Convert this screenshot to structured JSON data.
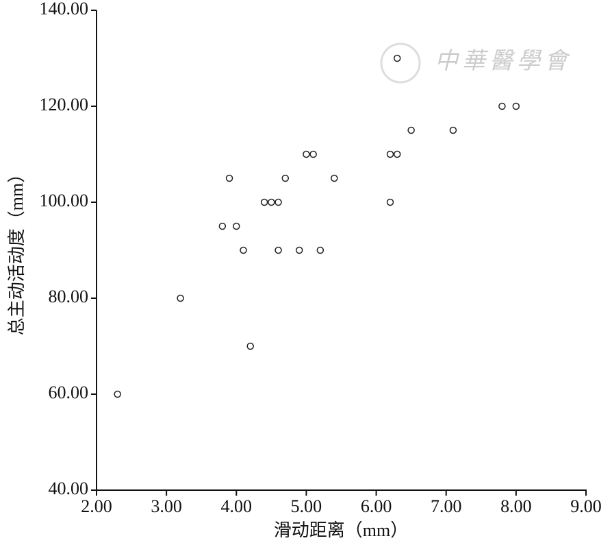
{
  "chart_data": {
    "type": "scatter",
    "x_label": "滑动距离（mm）",
    "y_label": "总主动活动度（mm）",
    "watermark": "中華醫學會",
    "series": [
      {
        "color": "#222222",
        "x": [
          2.3,
          3.2,
          3.8,
          3.9,
          4.0,
          4.1,
          4.2,
          4.4,
          4.5,
          4.6,
          4.6,
          4.7,
          4.9,
          5.0,
          5.1,
          5.2,
          5.4,
          6.2,
          6.2,
          6.3,
          6.3,
          6.5,
          7.1,
          7.8,
          8.0
        ],
        "values": [
          60,
          80,
          95,
          105,
          95,
          90,
          70,
          100,
          100,
          100,
          90,
          105,
          90,
          110,
          110,
          90,
          105,
          100,
          110,
          110,
          130,
          115,
          115,
          120,
          120
        ]
      }
    ],
    "xlim": [
      2,
      9
    ],
    "ylim": [
      40,
      140
    ],
    "xticks": [
      {
        "value": 2,
        "label": "2.00"
      },
      {
        "value": 3,
        "label": "3.00"
      },
      {
        "value": 4,
        "label": "4.00"
      },
      {
        "value": 5,
        "label": "5.00"
      },
      {
        "value": 6,
        "label": "6.00"
      },
      {
        "value": 7,
        "label": "7.00"
      },
      {
        "value": 8,
        "label": "8.00"
      },
      {
        "value": 9,
        "label": "9.00"
      }
    ],
    "yticks": [
      {
        "value": 40,
        "label": "40.00"
      },
      {
        "value": 60,
        "label": "60.00"
      },
      {
        "value": 80,
        "label": "80.00"
      },
      {
        "value": 100,
        "label": "100.00"
      },
      {
        "value": 120,
        "label": "120.00"
      },
      {
        "value": 140,
        "label": "140.00"
      }
    ]
  }
}
